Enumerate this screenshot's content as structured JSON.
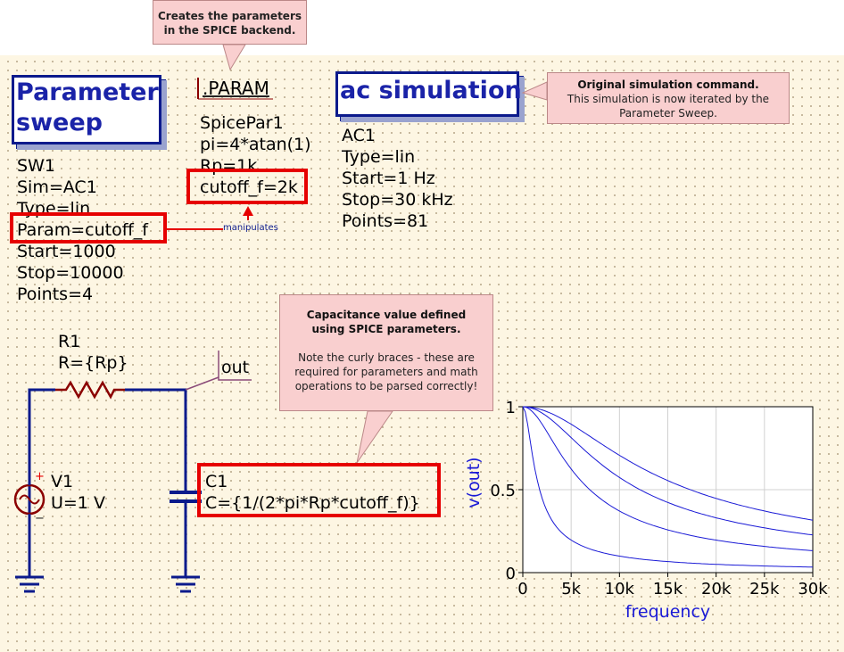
{
  "callouts": {
    "spice_backend": "Creates the parameters in the SPICE backend.",
    "original_title": "Original simulation command.",
    "original_body": "This simulation is now iterated by the Parameter Sweep.",
    "cap_title": "Capacitance value defined using SPICE parameters.",
    "cap_body": "Note the curly braces - these are required for parameters and math operations to be parsed correctly!",
    "manipulates": "manipulates"
  },
  "sweep": {
    "title_line1": "Parameter",
    "title_line2": "sweep",
    "name": "SW1",
    "sim": "Sim=AC1",
    "type": "Type=lin",
    "param": "Param=cutoff_f",
    "start": "Start=1000",
    "stop": "Stop=10000",
    "points": "Points=4"
  },
  "param": {
    "title": ".PARAM",
    "name": "SpicePar1",
    "pi": "pi=4*atan(1)",
    "rp": "Rp=1k",
    "cutoff": "cutoff_f=2k"
  },
  "ac": {
    "title": "ac simulation",
    "name": "AC1",
    "type": "Type=lin",
    "start": "Start=1 Hz",
    "stop": "Stop=30 kHz",
    "points": "Points=81"
  },
  "circuit": {
    "r_name": "R1",
    "r_value": "R={Rp}",
    "out_label": "out",
    "v_name": "V1",
    "v_value": "U=1 V",
    "plus": "+",
    "minus": "−",
    "c_name": "C1",
    "c_value": "C={1/(2*pi*Rp*cutoff_f)}"
  },
  "chart_data": {
    "type": "line",
    "xlabel": "frequency",
    "ylabel": "v(out)",
    "xlim": [
      0,
      30000
    ],
    "ylim": [
      0,
      1
    ],
    "xticks": [
      "0",
      "5k",
      "10k",
      "15k",
      "20k",
      "25k",
      "30k"
    ],
    "yticks": [
      "0",
      "0.5",
      "1"
    ],
    "grid": true,
    "line_color": "#1a1ad6",
    "series": [
      {
        "cutoff": 1000
      },
      {
        "cutoff": 4000
      },
      {
        "cutoff": 7000
      },
      {
        "cutoff": 10000
      }
    ]
  }
}
